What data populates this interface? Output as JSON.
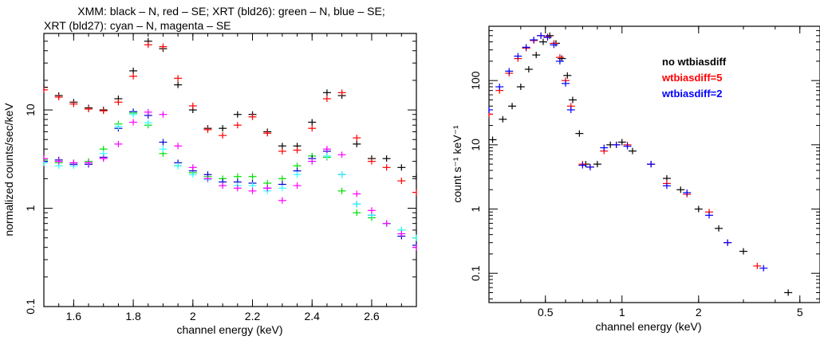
{
  "chart_data": [
    {
      "type": "scatter",
      "title_lines": [
        "XMM: black – N, red – SE; XRT (bld26): green – N, blue – SE;",
        "XRT (bld27): cyan – N, magenta – SE"
      ],
      "xlabel": "channel energy (keV)",
      "ylabel": "normalized counts/sec/keV",
      "xlim": [
        1.5,
        2.75
      ],
      "ylim": [
        0.1,
        60
      ],
      "x_scale": "linear",
      "y_scale": "log",
      "xticks": [
        1.6,
        1.8,
        2,
        2.2,
        2.4,
        2.6
      ],
      "xtick_labels": [
        "1.6",
        "1.8",
        "2",
        "2.2",
        "2.4",
        "2.6"
      ],
      "yticks": [
        0.1,
        1,
        10
      ],
      "ytick_labels": [
        "0.1",
        "1",
        "10"
      ],
      "grid": false,
      "colors": {
        "black": "#000000",
        "red": "#ff0000",
        "green": "#00dd00",
        "blue": "#0000cc",
        "cyan": "#33ffff",
        "magenta": "#ff00ff"
      },
      "series": [
        {
          "color": "black",
          "x": [
            1.5,
            1.55,
            1.6,
            1.65,
            1.7,
            1.75,
            1.8,
            1.85,
            1.9,
            1.95,
            2.0,
            2.05,
            2.1,
            2.15,
            2.2,
            2.25,
            2.3,
            2.35,
            2.4,
            2.45,
            2.5,
            2.55,
            2.6,
            2.65,
            2.7,
            2.75
          ],
          "y": [
            17,
            14,
            12,
            10.5,
            10,
            13,
            25,
            50,
            42,
            18,
            10,
            6.5,
            6.5,
            9,
            9,
            6,
            4.3,
            4.3,
            7.5,
            15,
            14,
            4.5,
            3.2,
            3.2,
            2.6,
            2.1
          ]
        },
        {
          "color": "red",
          "x": [
            1.5,
            1.55,
            1.6,
            1.65,
            1.7,
            1.75,
            1.8,
            1.85,
            1.9,
            1.95,
            2.0,
            2.05,
            2.1,
            2.15,
            2.2,
            2.25,
            2.3,
            2.35,
            2.4,
            2.45,
            2.5,
            2.55,
            2.6,
            2.65,
            2.7,
            2.75
          ],
          "y": [
            16,
            13.5,
            11.5,
            10.2,
            9.8,
            12,
            22,
            46,
            44,
            21,
            11,
            6.3,
            5.5,
            7,
            8.5,
            5.8,
            3.8,
            3.9,
            6.5,
            13,
            15,
            5.2,
            3.0,
            2.6,
            1.9,
            1.45
          ]
        },
        {
          "color": "green",
          "x": [
            1.5,
            1.55,
            1.6,
            1.65,
            1.7,
            1.75,
            1.8,
            1.85,
            1.9,
            1.95,
            2.0,
            2.05,
            2.1,
            2.15,
            2.2,
            2.25,
            2.3,
            2.35,
            2.4,
            2.45,
            2.5,
            2.55,
            2.6,
            2.65,
            2.7,
            2.75
          ],
          "y": [
            3.1,
            2.9,
            2.9,
            3.0,
            4.0,
            7.2,
            9.3,
            7.0,
            3.6,
            2.7,
            2.3,
            2.1,
            2.0,
            2.1,
            2.1,
            1.8,
            2.0,
            2.7,
            3.4,
            3.3,
            1.5,
            0.9,
            0.8,
            0.7,
            0.6,
            0.5
          ]
        },
        {
          "color": "blue",
          "x": [
            1.5,
            1.55,
            1.6,
            1.65,
            1.7,
            1.75,
            1.8,
            1.85,
            1.9,
            1.95,
            2.0,
            2.05,
            2.1,
            2.15,
            2.2,
            2.25,
            2.3,
            2.35,
            2.4,
            2.45,
            2.5,
            2.55,
            2.6,
            2.65,
            2.7,
            2.75
          ],
          "y": [
            3.0,
            3.1,
            2.8,
            2.8,
            3.3,
            6.5,
            9.6,
            8.8,
            4.7,
            2.9,
            2.4,
            2.2,
            1.85,
            1.85,
            1.8,
            1.6,
            1.75,
            2.4,
            3.2,
            3.8,
            2.2,
            1.1,
            0.85,
            0.7,
            0.52,
            0.42
          ]
        },
        {
          "color": "cyan",
          "x": [
            1.5,
            1.55,
            1.6,
            1.65,
            1.7,
            1.75,
            1.8,
            1.85,
            1.9,
            1.95,
            2.0,
            2.05,
            2.1,
            2.15,
            2.2,
            2.25,
            2.3,
            2.35,
            2.4,
            2.45,
            2.5,
            2.55,
            2.6,
            2.65,
            2.7,
            2.75
          ],
          "y": [
            2.9,
            2.7,
            2.7,
            2.9,
            3.6,
            6.8,
            9.0,
            7.4,
            4.0,
            2.7,
            2.2,
            1.95,
            1.7,
            1.7,
            1.7,
            1.5,
            1.6,
            2.2,
            3.0,
            3.4,
            2.2,
            1.1,
            0.85,
            0.7,
            0.6,
            0.5
          ]
        },
        {
          "color": "magenta",
          "x": [
            1.5,
            1.55,
            1.6,
            1.65,
            1.7,
            1.75,
            1.8,
            1.85,
            1.9,
            1.95,
            2.0,
            2.05,
            2.1,
            2.15,
            2.2,
            2.25,
            2.3,
            2.35,
            2.4,
            2.45,
            2.5,
            2.55,
            2.6,
            2.65,
            2.7,
            2.75
          ],
          "y": [
            3.2,
            3.0,
            2.9,
            2.9,
            3.2,
            4.5,
            7.5,
            9.5,
            9.0,
            4.3,
            2.6,
            2.0,
            1.7,
            1.6,
            1.5,
            1.6,
            1.2,
            1.7,
            3.0,
            4.0,
            3.5,
            1.4,
            0.95,
            0.7,
            0.55,
            0.4
          ]
        }
      ]
    },
    {
      "type": "scatter",
      "xlabel": "channel energy (keV)",
      "ylabel": "count s⁻¹ keV⁻¹",
      "xlim": [
        0.3,
        6
      ],
      "ylim": [
        0.035,
        700
      ],
      "x_scale": "log",
      "y_scale": "log",
      "xticks": [
        0.5,
        1,
        2,
        5
      ],
      "xtick_labels": [
        "0.5",
        "1",
        "2",
        "5"
      ],
      "yticks": [
        0.1,
        1,
        10,
        100
      ],
      "ytick_labels": [
        "0.1",
        "1",
        "10",
        "100"
      ],
      "grid": false,
      "legend": {
        "placement": "top-right",
        "entries": [
          {
            "label": "no wtbiasdiff",
            "color": "#000000"
          },
          {
            "label": "wtbiasdiff=5",
            "color": "#ff0000"
          },
          {
            "label": "wtbiasdiff=2",
            "color": "#0000ff"
          }
        ]
      },
      "series": [
        {
          "name": "no wtbiasdiff",
          "color": "#000000",
          "x": [
            0.31,
            0.34,
            0.37,
            0.4,
            0.43,
            0.46,
            0.49,
            0.52,
            0.55,
            0.58,
            0.61,
            0.64,
            0.68,
            0.72,
            0.8,
            0.9,
            1.0,
            1.1,
            1.3,
            1.5,
            1.7,
            2.0,
            2.4,
            3.0,
            4.5
          ],
          "y": [
            12,
            25,
            40,
            80,
            150,
            250,
            400,
            500,
            380,
            220,
            120,
            50,
            15,
            5,
            5,
            10,
            11,
            8,
            5,
            3,
            2,
            1,
            0.5,
            0.22,
            0.05
          ]
        },
        {
          "name": "wtbiasdiff=5",
          "color": "#ff0000",
          "x": [
            0.3,
            0.33,
            0.36,
            0.39,
            0.42,
            0.45,
            0.48,
            0.51,
            0.54,
            0.57,
            0.6,
            0.63,
            0.7,
            0.75,
            0.85,
            0.95,
            1.05,
            1.3,
            1.5,
            1.8,
            2.2,
            2.6,
            3.4
          ],
          "y": [
            30,
            70,
            130,
            220,
            320,
            420,
            500,
            480,
            380,
            230,
            100,
            40,
            5,
            4.5,
            8,
            10,
            10,
            5,
            2.5,
            1.7,
            0.9,
            0.3,
            0.13
          ]
        },
        {
          "name": "wtbiasdiff=2",
          "color": "#0000ff",
          "x": [
            0.3,
            0.33,
            0.36,
            0.39,
            0.42,
            0.45,
            0.48,
            0.51,
            0.54,
            0.57,
            0.6,
            0.63,
            0.7,
            0.75,
            0.85,
            0.95,
            1.05,
            1.3,
            1.5,
            1.8,
            2.2,
            2.6,
            3.6
          ],
          "y": [
            35,
            80,
            140,
            240,
            330,
            430,
            500,
            470,
            360,
            200,
            90,
            35,
            4.8,
            4.5,
            9,
            10,
            9.5,
            5,
            2.3,
            1.8,
            0.8,
            0.3,
            0.12
          ]
        }
      ]
    }
  ]
}
